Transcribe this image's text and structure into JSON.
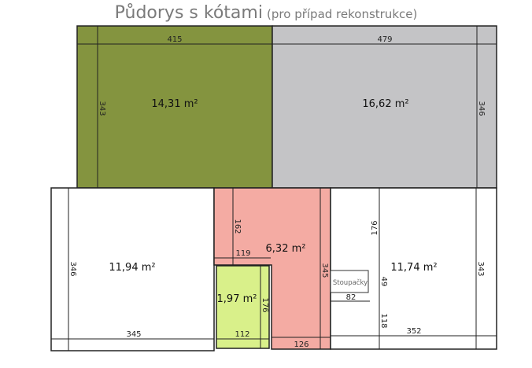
{
  "title": {
    "main": "Půdorys s kótami",
    "subtitle": "(pro případ rekonstrukce)"
  },
  "colors": {
    "room_green": "#84943f",
    "room_gray": "#c4c4c6",
    "room_pink": "#f4aba3",
    "room_lime": "#d9f08a",
    "room_white": "#ffffff"
  },
  "rooms": [
    {
      "area": "14,31 m²",
      "color": "#84943f"
    },
    {
      "area": "16,62 m²",
      "color": "#c4c4c6"
    },
    {
      "area": "11,94 m²",
      "color": "#ffffff"
    },
    {
      "area": "6,32 m²",
      "color": "#f4aba3"
    },
    {
      "area": "1,97 m²",
      "color": "#d9f08a"
    },
    {
      "area": "11,74 m²",
      "color": "#ffffff"
    }
  ],
  "label_risers": "Stoupačky",
  "dimensions": {
    "green_width": "415",
    "green_height": "343",
    "gray_width": "479",
    "gray_height": "346",
    "left_height": "346",
    "left_width": "345",
    "hall_top": "162",
    "hall_width_upper": "119",
    "hall_height": "345",
    "hall_bottom": "126",
    "wc_width": "112",
    "wc_height": "176",
    "right_top": "176",
    "riser_height": "49",
    "riser_width": "82",
    "right_lower": "118",
    "right_width": "352",
    "right_height": "343"
  }
}
